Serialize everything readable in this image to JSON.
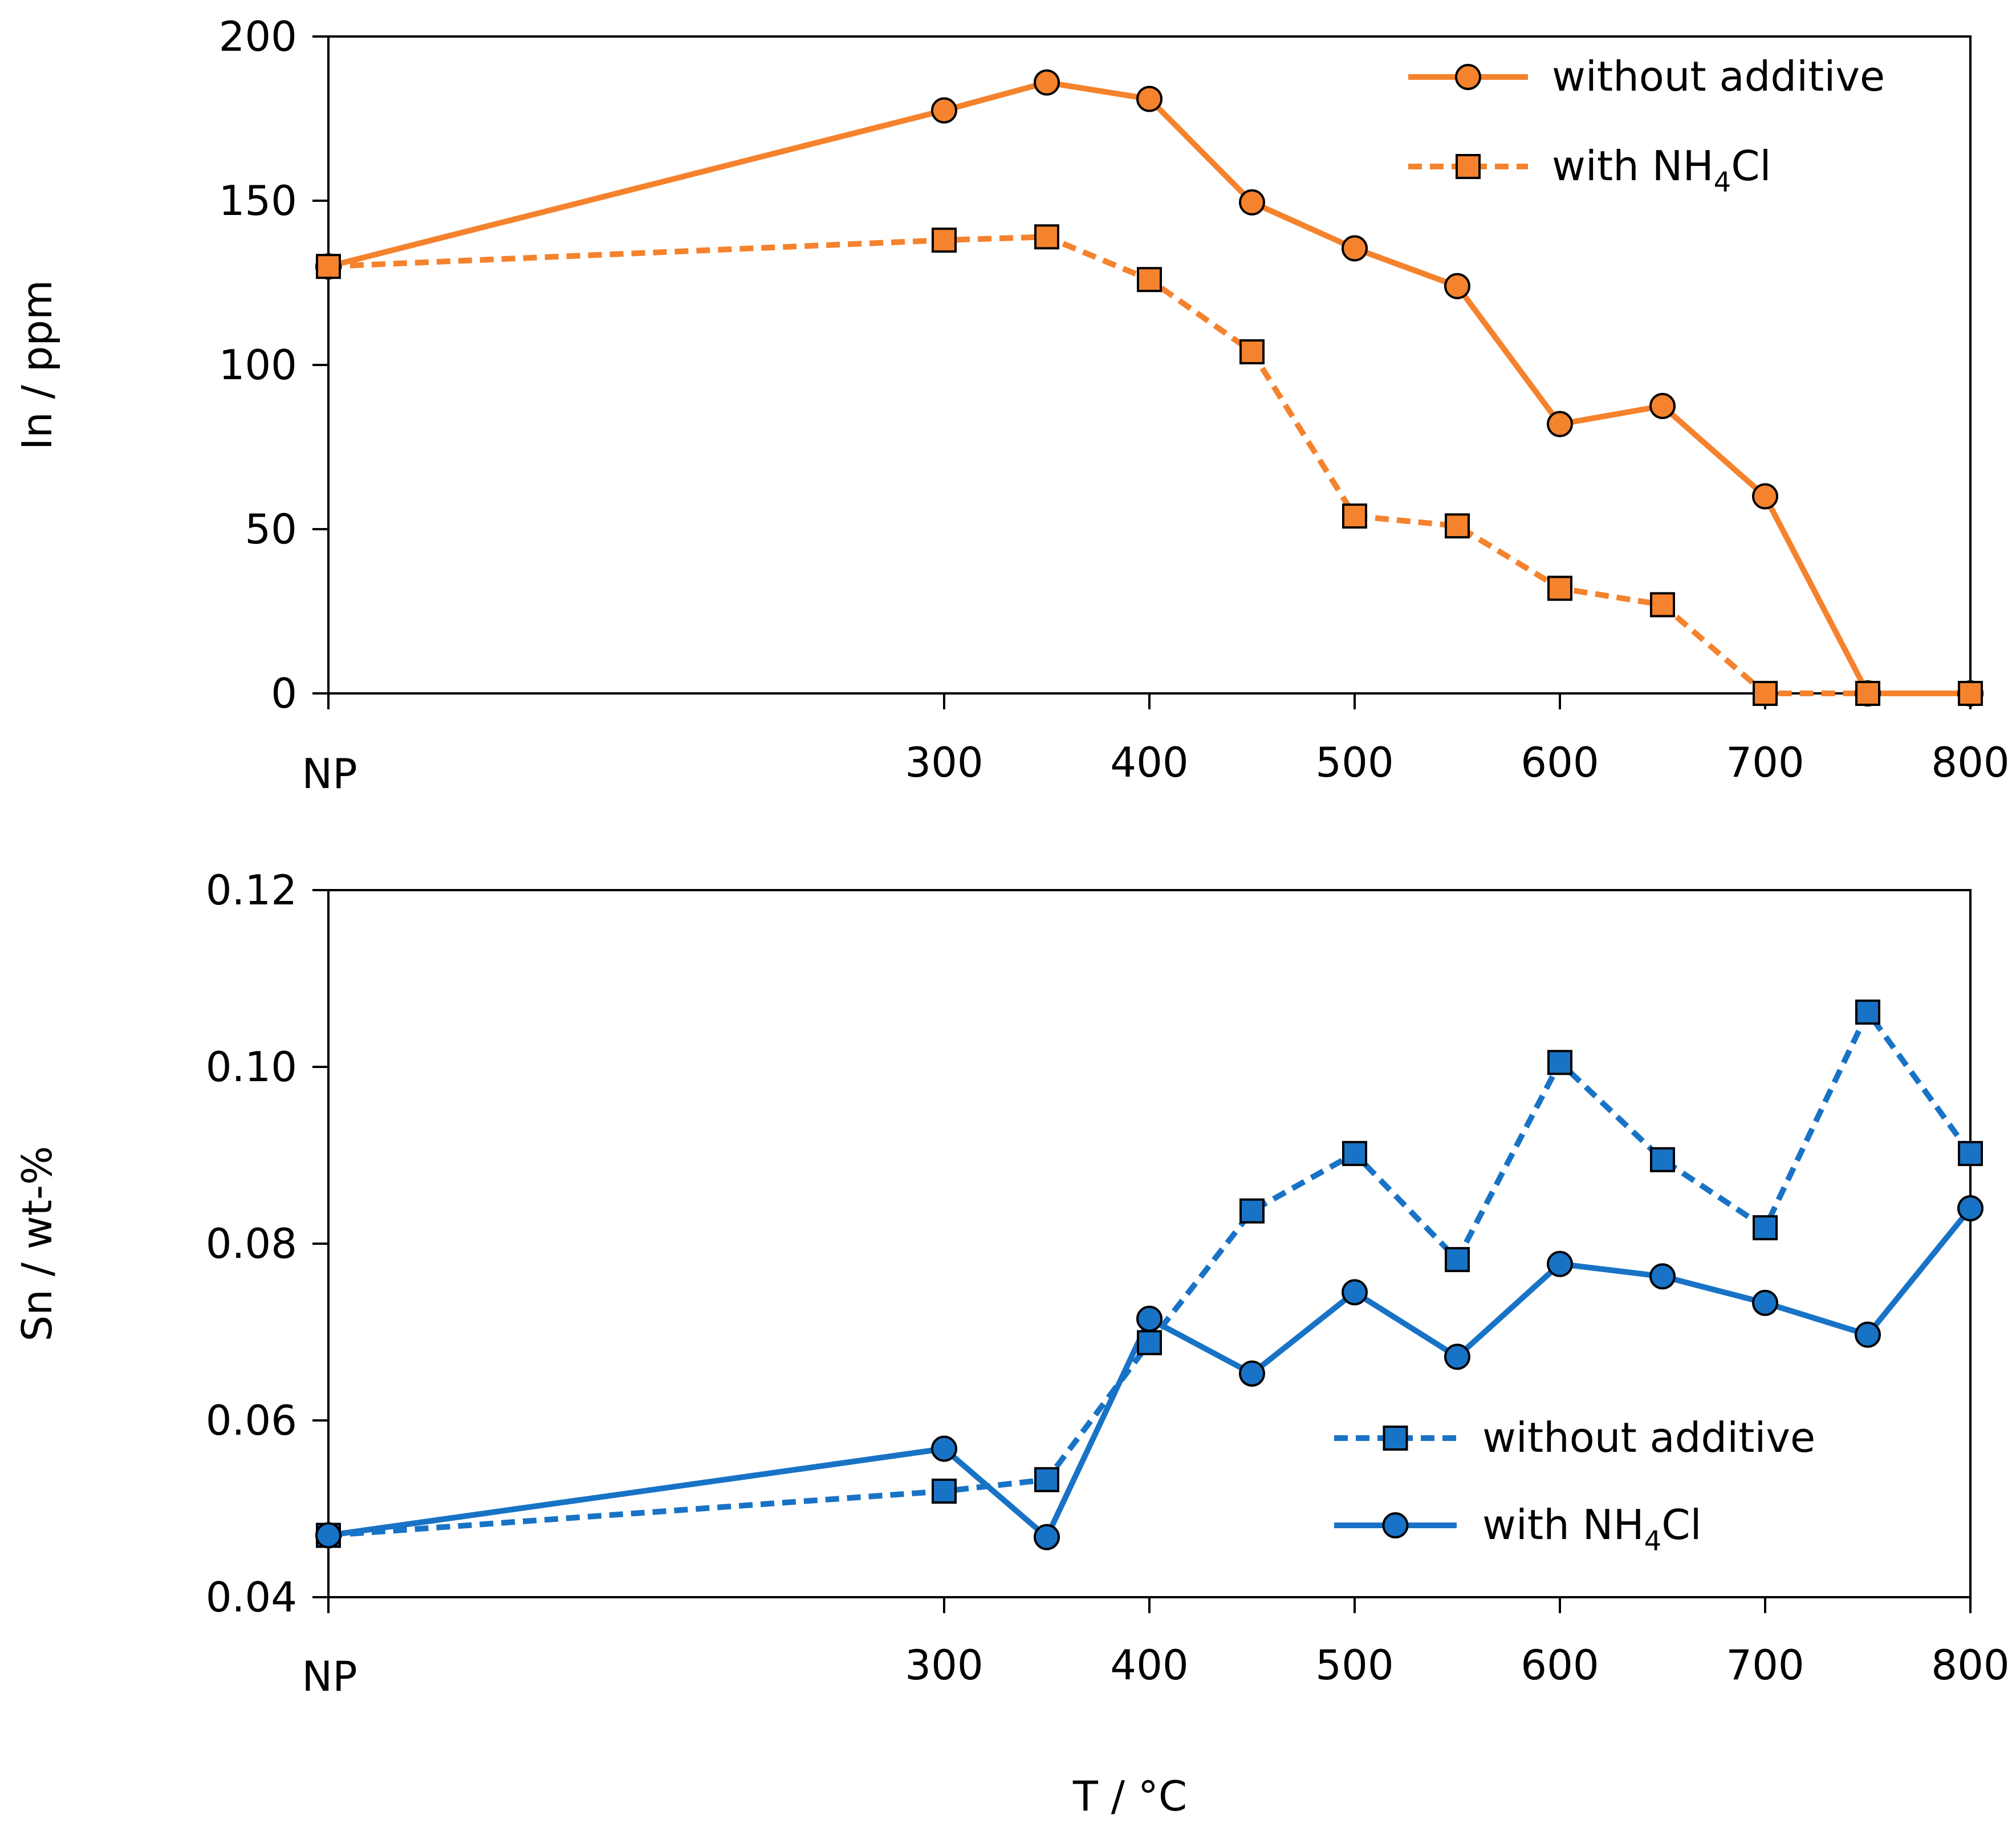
{
  "chart_data": [
    {
      "type": "line",
      "panel": "top",
      "title": "",
      "xlabel": "",
      "ylabel": "In / ppm",
      "x_categories": [
        "NP",
        "300",
        "400",
        "500",
        "600",
        "700",
        "800"
      ],
      "x_positions": [
        0,
        300,
        400,
        500,
        600,
        700,
        800
      ],
      "x_points": [
        0,
        300,
        350,
        400,
        450,
        500,
        550,
        600,
        650,
        700,
        750,
        800
      ],
      "ylim": [
        0,
        200
      ],
      "yticks": [
        0,
        50,
        100,
        150,
        200
      ],
      "ytick_labels": [
        "0",
        "50",
        "100",
        "150",
        "200"
      ],
      "legend_position": "top-right",
      "series": [
        {
          "name": "without additive",
          "name_main": "without additive",
          "name_sub": "",
          "name_tail": "",
          "color": "#F5822D",
          "line": "solid",
          "marker": "circle",
          "x": [
            0,
            300,
            350,
            400,
            450,
            500,
            550,
            600,
            650,
            700,
            750,
            800
          ],
          "values": [
            130,
            177.5,
            186,
            181,
            149.5,
            135.5,
            124,
            82,
            87.5,
            60,
            0,
            0
          ]
        },
        {
          "name": "with NH4Cl",
          "name_main": "with NH",
          "name_sub": "4",
          "name_tail": "Cl",
          "color": "#F5822D",
          "line": "dashed",
          "marker": "square",
          "x": [
            0,
            300,
            350,
            400,
            450,
            500,
            550,
            600,
            650,
            700,
            750,
            800
          ],
          "values": [
            130,
            138,
            139,
            126,
            104,
            54,
            51,
            32,
            27,
            0,
            0,
            0
          ]
        }
      ]
    },
    {
      "type": "line",
      "panel": "bottom",
      "title": "",
      "xlabel": "T / °C",
      "ylabel": "Sn / wt-%",
      "x_categories": [
        "NP",
        "300",
        "400",
        "500",
        "600",
        "700",
        "800"
      ],
      "x_positions": [
        0,
        300,
        400,
        500,
        600,
        700,
        800
      ],
      "x_points": [
        0,
        300,
        350,
        400,
        450,
        500,
        550,
        600,
        650,
        700,
        750,
        800
      ],
      "ylim": [
        0.04,
        0.12
      ],
      "yticks": [
        0.04,
        0.06,
        0.08,
        0.1,
        0.12
      ],
      "ytick_labels": [
        "0.04",
        "0.06",
        "0.08",
        "0.10",
        "0.12"
      ],
      "legend_position": "bottom-right",
      "series": [
        {
          "name": "without additive",
          "name_main": "without additive",
          "name_sub": "",
          "name_tail": "",
          "color": "#1873C6",
          "line": "dashed",
          "marker": "square",
          "x": [
            0,
            300,
            350,
            400,
            450,
            500,
            550,
            600,
            650,
            700,
            750,
            800
          ],
          "values": [
            0.047,
            0.052,
            0.0533,
            0.0688,
            0.0837,
            0.0902,
            0.0782,
            0.1005,
            0.0895,
            0.0818,
            0.1062,
            0.0902
          ]
        },
        {
          "name": "with NH4Cl",
          "name_main": "with NH",
          "name_sub": "4",
          "name_tail": "Cl",
          "color": "#1873C6",
          "line": "solid",
          "marker": "circle",
          "x": [
            0,
            300,
            350,
            400,
            450,
            500,
            550,
            600,
            650,
            700,
            750,
            800
          ],
          "values": [
            0.047,
            0.0568,
            0.0468,
            0.0715,
            0.0653,
            0.0745,
            0.0672,
            0.0777,
            0.0763,
            0.0733,
            0.0697,
            0.084
          ]
        }
      ]
    }
  ]
}
